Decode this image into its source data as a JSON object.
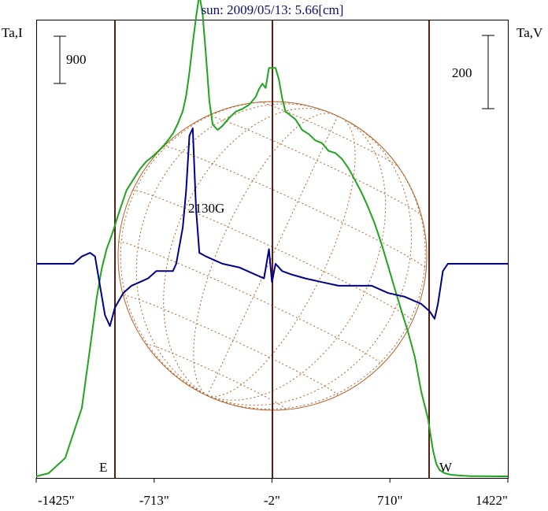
{
  "chart_data": {
    "type": "line",
    "title": "sun: 2009/05/13: 5.66[cm]",
    "left_axis_label": "Ta,I",
    "right_axis_label": "Ta,V",
    "left_scale_label": "900",
    "right_scale_label": "200",
    "east_label": "E",
    "west_label": "W",
    "annotation": "2130G",
    "x_ticks": [
      {
        "value": -1425,
        "label": "-1425\""
      },
      {
        "value": -713,
        "label": "-713\""
      },
      {
        "value": -2,
        "label": "-2\""
      },
      {
        "value": 710,
        "label": "710\""
      },
      {
        "value": 1422,
        "label": "1422\""
      }
    ],
    "x_range": [
      -1425,
      1422
    ],
    "limb_positions": [
      -980,
      980
    ],
    "series": [
      {
        "color": "#1fa51f",
        "x": [
          -1425,
          -1350,
          -1250,
          -1150,
          -1100,
          -1060,
          -1030,
          -1000,
          -980,
          -960,
          -920,
          -880,
          -840,
          -800,
          -760,
          -720,
          -680,
          -640,
          -600,
          -570,
          -540,
          -520,
          -500,
          -480,
          -460,
          -440,
          -420,
          -400,
          -380,
          -360,
          -330,
          -300,
          -260,
          -220,
          -180,
          -140,
          -100,
          -80,
          -60,
          -40,
          -20,
          0,
          20,
          40,
          60,
          80,
          100,
          140,
          180,
          220,
          260,
          300,
          340,
          380,
          420,
          460,
          500,
          540,
          580,
          620,
          660,
          700,
          740,
          780,
          820,
          860,
          900,
          940,
          970,
          990,
          1010,
          1040,
          1080,
          1120,
          1160,
          1200,
          1260,
          1330,
          1422
        ],
        "y": [
          0,
          60,
          350,
          1300,
          2450,
          3400,
          3950,
          4330,
          4500,
          4680,
          5080,
          5450,
          5650,
          5850,
          6000,
          6100,
          6220,
          6360,
          6530,
          6720,
          6960,
          7250,
          7700,
          8250,
          8750,
          9180,
          8800,
          8000,
          7150,
          6700,
          6600,
          6680,
          6830,
          6950,
          7000,
          7080,
          7230,
          7380,
          7480,
          7400,
          7780,
          7780,
          7780,
          7560,
          7200,
          6950,
          6900,
          6800,
          6600,
          6520,
          6400,
          6350,
          6200,
          6160,
          6050,
          5870,
          5640,
          5400,
          5120,
          4800,
          4420,
          4000,
          3570,
          3150,
          2750,
          2280,
          1600,
          1100,
          500,
          240,
          120,
          60,
          30,
          20,
          10,
          5,
          3,
          1,
          0
        ]
      },
      {
        "color": "#00008b",
        "x": [
          -1425,
          -1200,
          -1150,
          -1100,
          -1070,
          -1040,
          -1010,
          -980,
          -950,
          -900,
          -850,
          -800,
          -750,
          -700,
          -650,
          -600,
          -580,
          -560,
          -540,
          -520,
          -500,
          -480,
          -460,
          -440,
          -400,
          -350,
          -300,
          -200,
          -100,
          -50,
          -20,
          -2,
          20,
          60,
          120,
          200,
          300,
          400,
          500,
          600,
          700,
          800,
          900,
          950,
          980,
          1000,
          1030,
          1060,
          1100,
          1200,
          1300,
          1422
        ],
        "y": [
          0,
          0,
          20,
          30,
          20,
          -60,
          -140,
          -170,
          -120,
          -80,
          -60,
          -50,
          -40,
          -20,
          -20,
          -20,
          0,
          50,
          100,
          200,
          350,
          370,
          150,
          30,
          20,
          10,
          0,
          -10,
          -30,
          -40,
          40,
          -50,
          0,
          -20,
          -30,
          -40,
          -50,
          -60,
          -60,
          -60,
          -80,
          -90,
          -110,
          -130,
          -150,
          -110,
          -20,
          0,
          0,
          0,
          0,
          0
        ]
      }
    ]
  }
}
